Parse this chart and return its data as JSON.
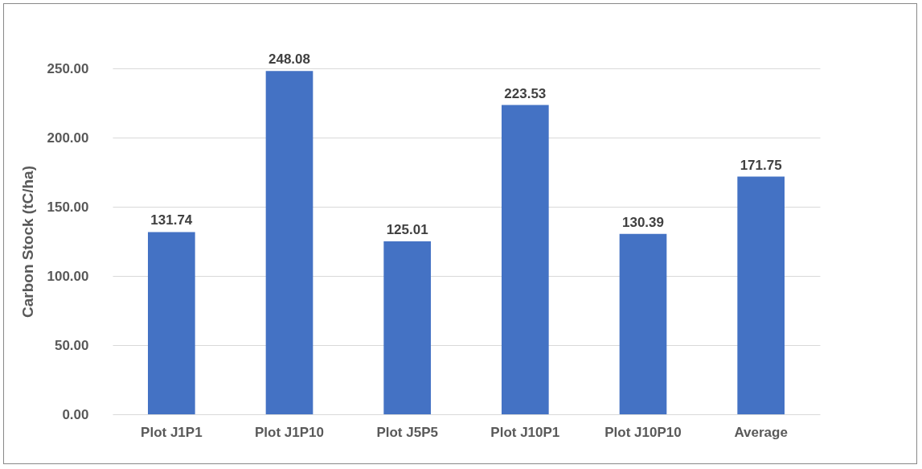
{
  "chart_data": {
    "type": "bar",
    "ylabel": "Carbon Stock (tC/ha)",
    "categories": [
      "Plot J1P1",
      "Plot  J1P10",
      "Plot J5P5",
      "Plot J10P1",
      "Plot J10P10",
      "Average"
    ],
    "values": [
      131.74,
      248.08,
      125.01,
      223.53,
      130.39,
      171.75
    ],
    "color": "#4472c4",
    "ylim": [
      0,
      250
    ],
    "yticks": [
      {
        "value": 0,
        "label": "0.00"
      },
      {
        "value": 50,
        "label": "50.00"
      },
      {
        "value": 100,
        "label": "100.00"
      },
      {
        "value": 150,
        "label": "150.00"
      },
      {
        "value": 200,
        "label": "200.00"
      },
      {
        "value": 250,
        "label": "250.00"
      }
    ],
    "grid": "y",
    "data_labels": true
  }
}
